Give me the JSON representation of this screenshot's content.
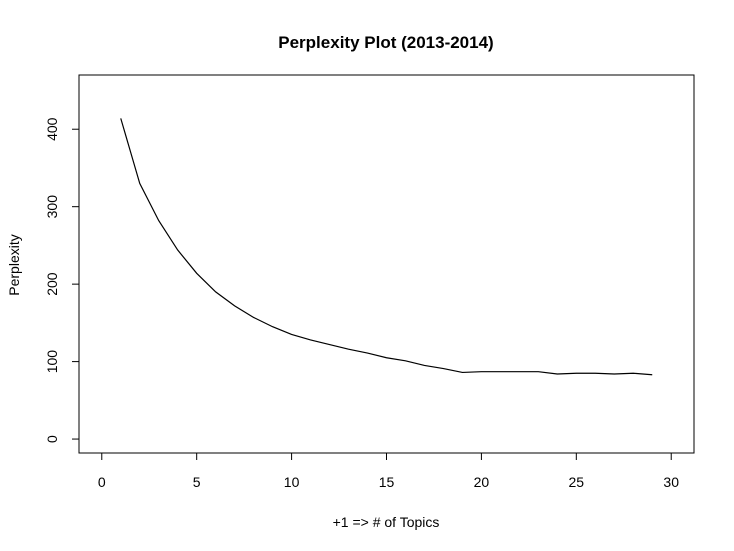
{
  "chart_data": {
    "type": "line",
    "title": "Perplexity Plot (2013-2014)",
    "xlabel": "+1 => # of Topics",
    "ylabel": "Perplexity",
    "xlim": [
      -1.2,
      31.2
    ],
    "ylim": [
      -18,
      470
    ],
    "xticks": [
      0,
      5,
      10,
      15,
      20,
      25,
      30
    ],
    "yticks": [
      0,
      100,
      200,
      300,
      400
    ],
    "grid": false,
    "series": [
      {
        "x": [
          1,
          2,
          3,
          4,
          5,
          6,
          7,
          8,
          9,
          10,
          11,
          12,
          13,
          14,
          15,
          16,
          17,
          18,
          19,
          20,
          21,
          22,
          23,
          24,
          25,
          26,
          27,
          28,
          29
        ],
        "values": [
          414,
          330,
          282,
          244,
          214,
          190,
          172,
          157,
          145,
          135,
          128,
          122,
          116,
          111,
          105,
          101,
          95,
          91,
          86,
          87,
          87,
          87,
          87,
          84,
          85,
          85,
          84,
          85,
          83
        ],
        "color": "#000000"
      }
    ]
  }
}
